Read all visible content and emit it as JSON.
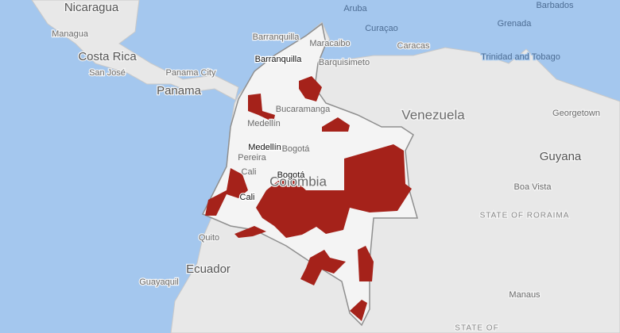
{
  "country_labels": [
    "Nicaragua",
    "Costa Rica",
    "Panama",
    "Venezuela",
    "Guyana",
    "Ecuador",
    "Colombia"
  ],
  "city_labels": [
    "Managua",
    "San José",
    "Panama City",
    "Barranquilla",
    "Maracaibo",
    "Barquisimeto",
    "Caracas",
    "Bucaramanga",
    "Medellín",
    "Bogotá",
    "Pereira",
    "Cali",
    "Georgetown",
    "Boa Vista",
    "Quito",
    "Guayaquil",
    "Manaus"
  ],
  "island_labels": [
    "Aruba",
    "Curaçao",
    "Barbados",
    "Grenada",
    "Trinidad and Tobago"
  ],
  "region_labels": [
    "STATE OF RORAIMA",
    "STATE OF"
  ],
  "overlay_labels": [
    "Barranquilla",
    "Medellín",
    "Bogotá",
    "Cali"
  ]
}
